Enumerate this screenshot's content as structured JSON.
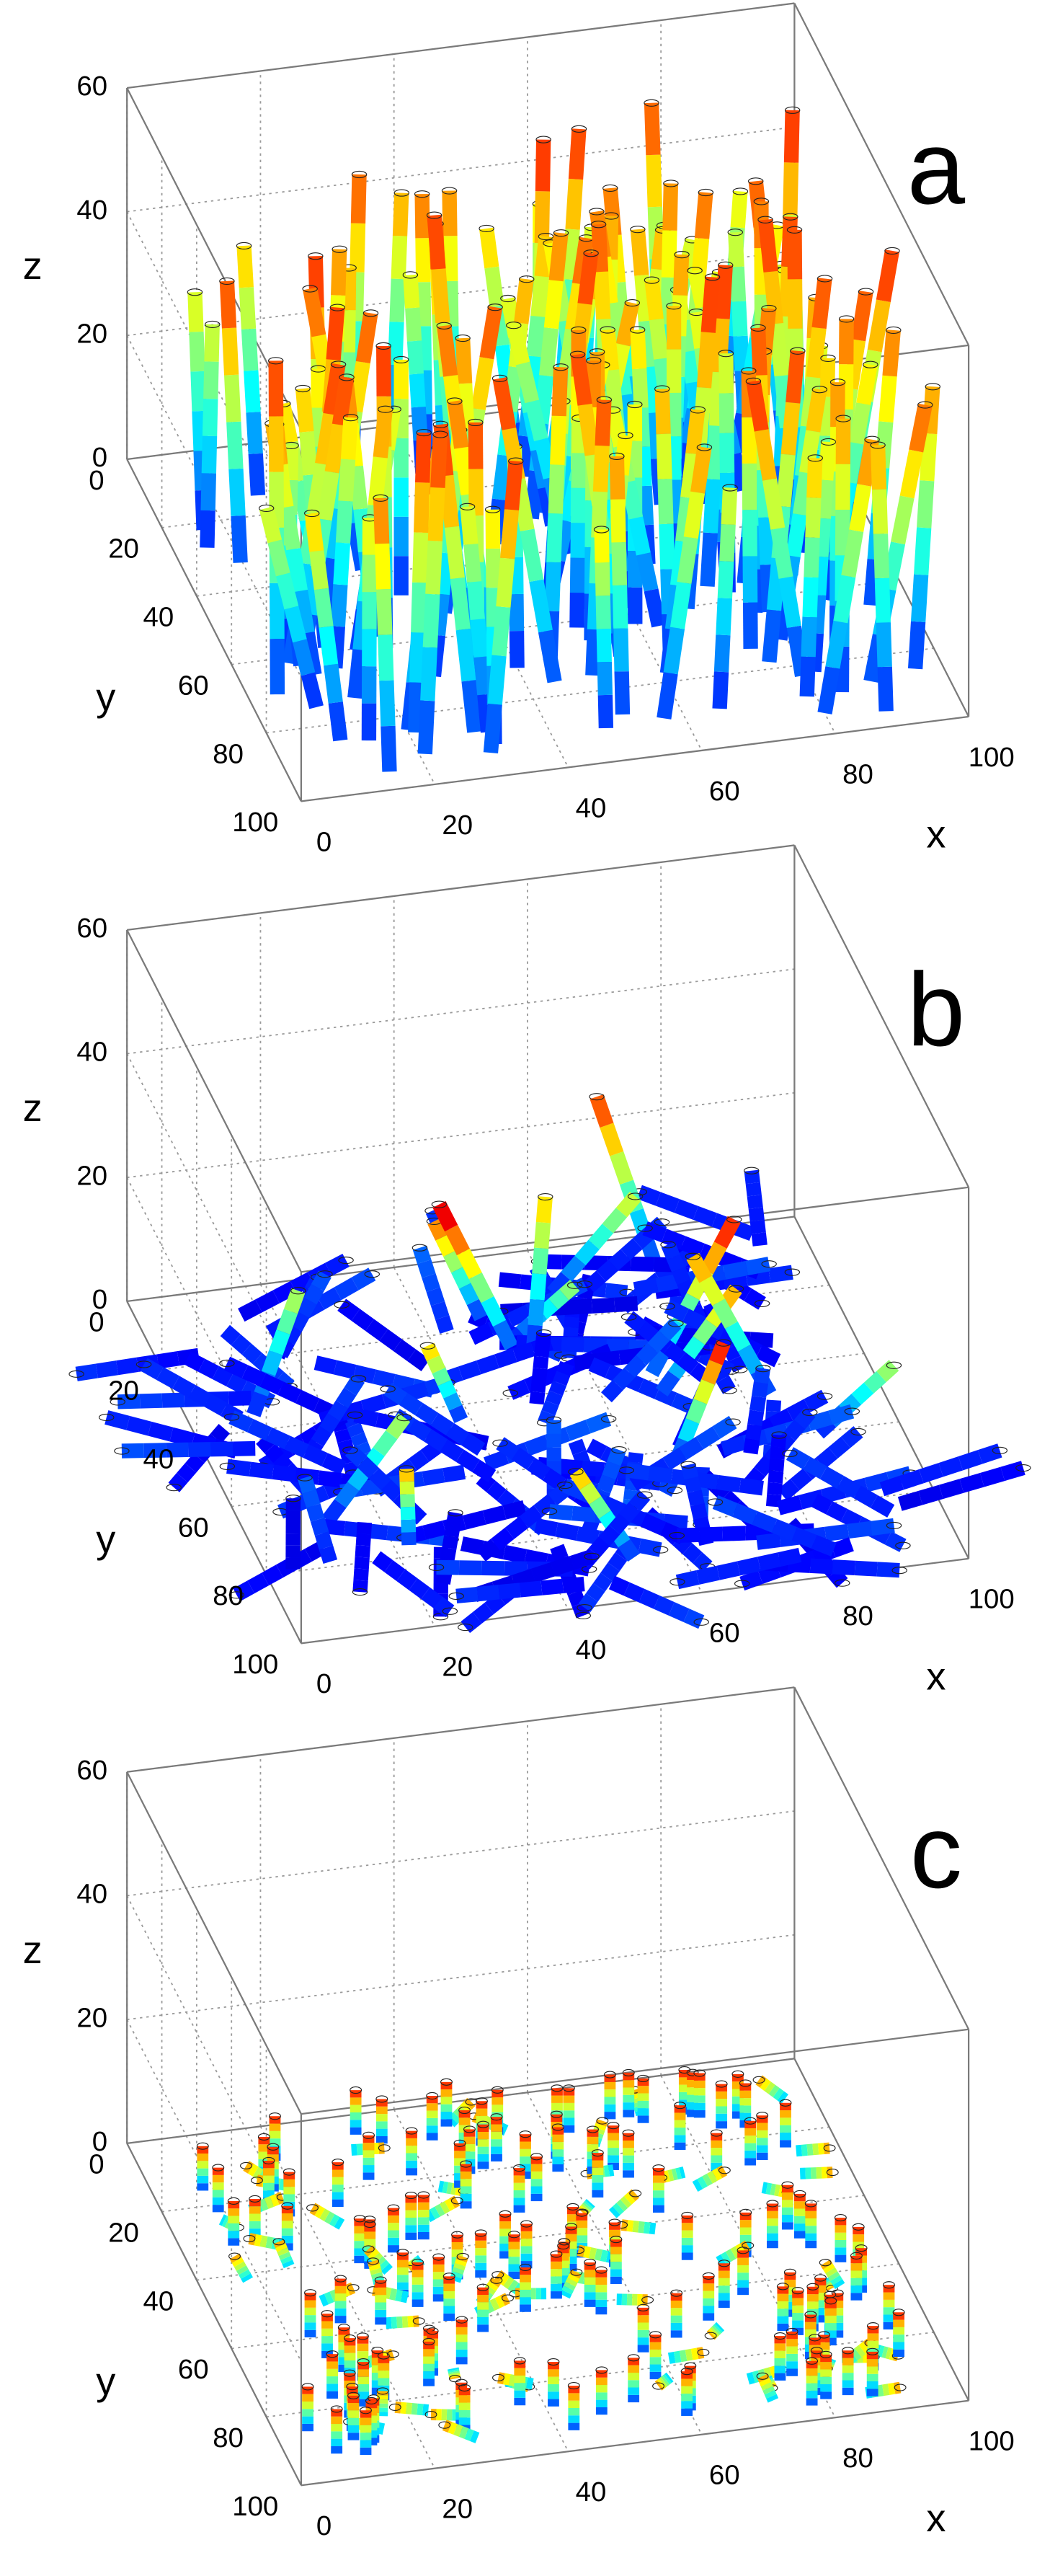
{
  "chart_data": [
    {
      "type": "scatter3d",
      "annotation": "a",
      "xlabel": "x",
      "ylabel": "y",
      "zlabel": "z",
      "xlim": [
        0,
        100
      ],
      "ylim": [
        0,
        100
      ],
      "zlim": [
        0,
        60
      ],
      "xticks": [
        0,
        20,
        40,
        60,
        80,
        100
      ],
      "yticks": [
        0,
        20,
        40,
        60,
        80,
        100
      ],
      "zticks": [
        0,
        20,
        40,
        60
      ],
      "grid": true
    },
    {
      "type": "scatter3d",
      "annotation": "b",
      "xlabel": "x",
      "ylabel": "y",
      "zlabel": "z",
      "xlim": [
        0,
        100
      ],
      "ylim": [
        0,
        100
      ],
      "zlim": [
        0,
        60
      ],
      "xticks": [
        0,
        20,
        40,
        60,
        80,
        100
      ],
      "yticks": [
        0,
        20,
        40,
        60,
        80,
        100
      ],
      "zticks": [
        0,
        20,
        40,
        60
      ],
      "grid": true
    },
    {
      "type": "scatter3d",
      "annotation": "c",
      "xlabel": "x",
      "ylabel": "y",
      "zlabel": "z",
      "xlim": [
        0,
        100
      ],
      "ylim": [
        0,
        100
      ],
      "zlim": [
        0,
        60
      ],
      "xticks": [
        0,
        20,
        40,
        60,
        80,
        100
      ],
      "yticks": [
        0,
        20,
        40,
        60,
        80,
        100
      ],
      "zticks": [
        0,
        20,
        40,
        60
      ],
      "grid": true
    }
  ]
}
